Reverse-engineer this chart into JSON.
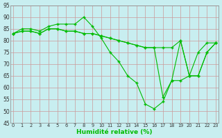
{
  "line1_y": [
    83,
    85,
    85,
    84,
    86,
    87,
    87,
    87,
    90,
    86,
    81,
    75,
    71,
    65,
    62,
    53,
    51,
    54,
    63,
    63,
    65,
    75,
    79,
    79
  ],
  "line2_y": [
    83,
    84,
    84,
    83,
    85,
    85,
    84,
    84,
    83,
    83,
    82,
    81,
    80,
    79,
    78,
    77,
    77,
    56,
    63,
    80,
    65,
    65,
    75,
    79
  ],
  "line3_y": [
    83,
    84,
    84,
    83,
    85,
    85,
    84,
    84,
    83,
    83,
    82,
    81,
    80,
    79,
    78,
    77,
    77,
    77,
    77,
    80,
    65,
    65,
    75,
    79
  ],
  "x": [
    0,
    1,
    2,
    3,
    4,
    5,
    6,
    7,
    8,
    9,
    10,
    11,
    12,
    13,
    14,
    15,
    16,
    17,
    18,
    19,
    20,
    21,
    22,
    23
  ],
  "xlabel": "Humidité relative (%)",
  "ylim": [
    45,
    95
  ],
  "xlim": [
    -0.3,
    23.3
  ],
  "yticks": [
    45,
    50,
    55,
    60,
    65,
    70,
    75,
    80,
    85,
    90,
    95
  ],
  "xticks": [
    0,
    1,
    2,
    3,
    4,
    5,
    6,
    7,
    8,
    9,
    10,
    11,
    12,
    13,
    14,
    15,
    16,
    17,
    18,
    19,
    20,
    21,
    22,
    23
  ],
  "line_color": "#00bb00",
  "bg_color": "#c8eef0",
  "grid_color": "#cc9999"
}
